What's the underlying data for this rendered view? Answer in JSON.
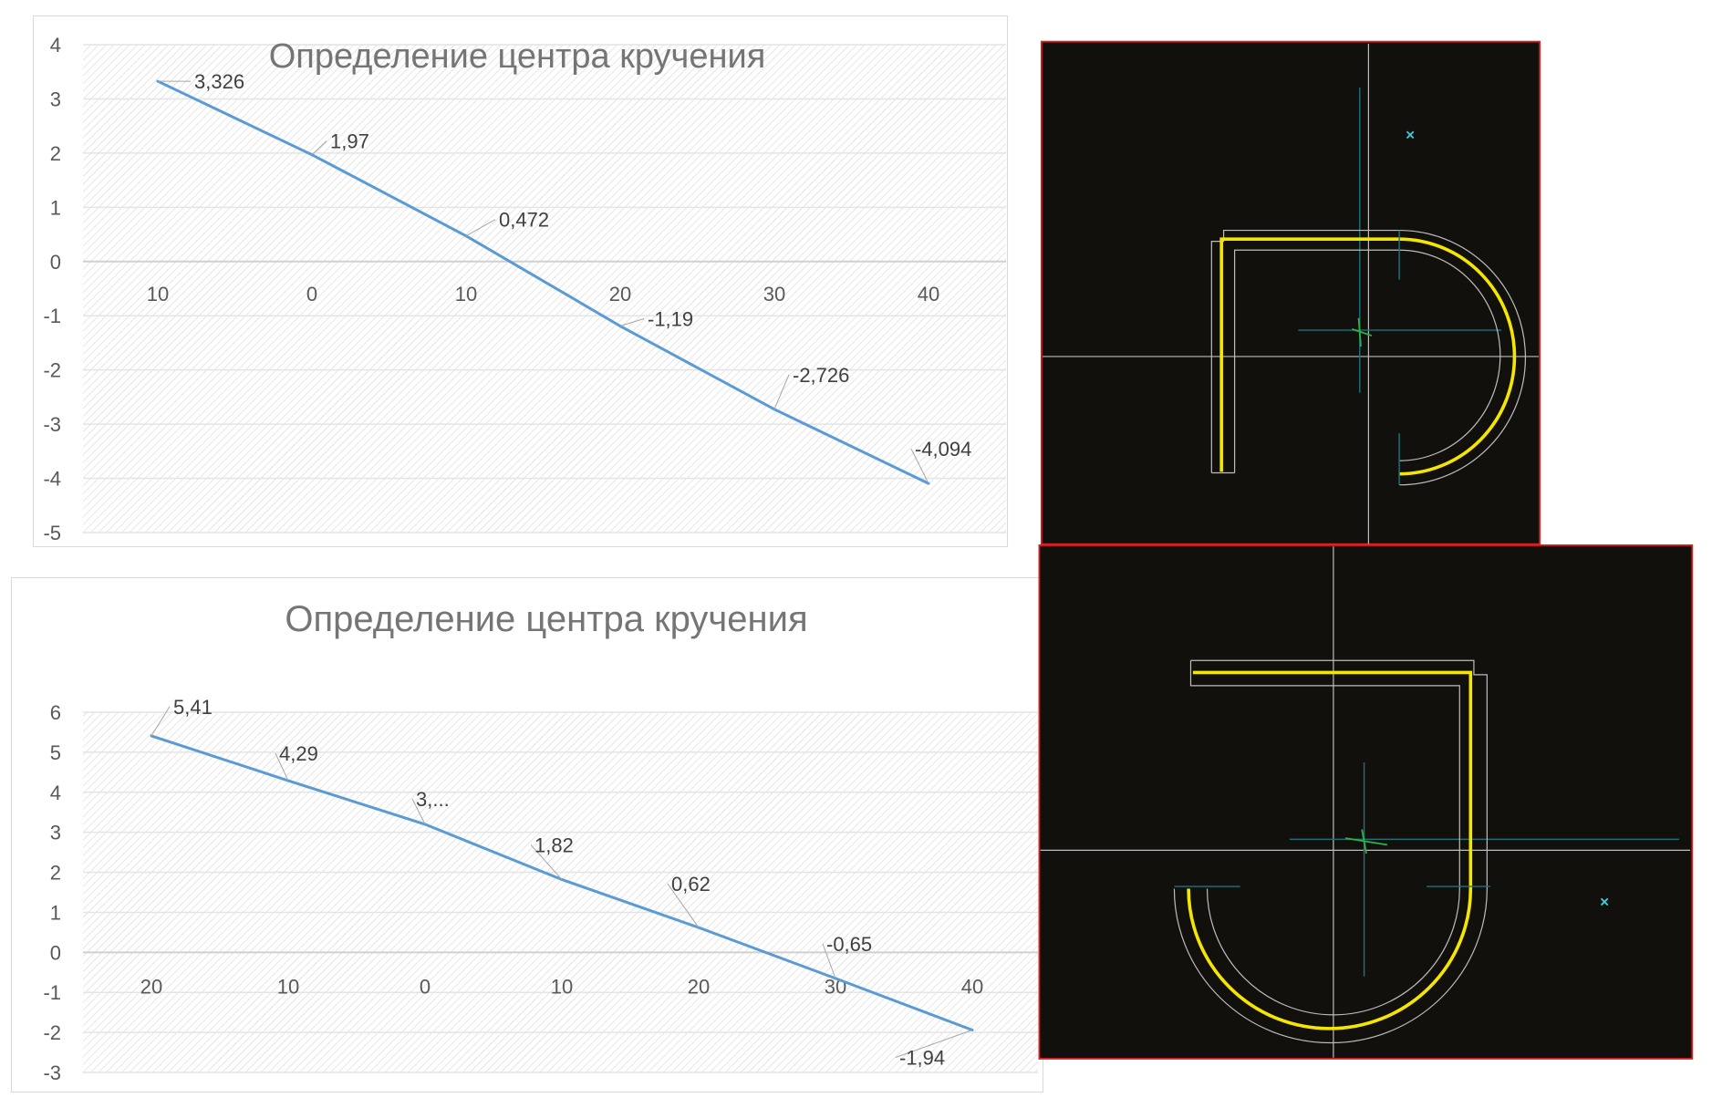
{
  "chart_data": [
    {
      "type": "line",
      "title": "Определение центра кручения",
      "xlabel": "",
      "ylabel": "",
      "categories": [
        "10",
        "0",
        "10",
        "20",
        "30",
        "40"
      ],
      "values": [
        3.326,
        1.97,
        0.472,
        -1.19,
        -2.726,
        -4.094
      ],
      "data_labels": [
        "3,326",
        "1,97",
        "0,472",
        "-1,19",
        "-2,726",
        "-4,094"
      ],
      "yticks": [
        "4",
        "3",
        "2",
        "1",
        "0",
        "-1",
        "-2",
        "-3",
        "-4",
        "-5"
      ],
      "ylim": [
        -5,
        4
      ],
      "grid": true,
      "line_color": "#5b9bd5"
    },
    {
      "type": "line",
      "title": "Определение центра кручения",
      "xlabel": "",
      "ylabel": "",
      "categories": [
        "20",
        "10",
        "0",
        "10",
        "20",
        "30",
        "40"
      ],
      "values": [
        5.41,
        4.29,
        3.2,
        1.82,
        0.62,
        -0.65,
        -1.94
      ],
      "data_labels": [
        "5,41",
        "4,29",
        "3,...",
        "1,82",
        "0,62",
        "-0,65",
        "-1,94"
      ],
      "yticks": [
        "6",
        "5",
        "4",
        "3",
        "2",
        "1",
        "0",
        "-1",
        "-2",
        "-3"
      ],
      "ylim": [
        -3,
        6
      ],
      "grid": true,
      "line_color": "#5b9bd5"
    }
  ],
  "cad_colors": {
    "background": "#12100c",
    "border": "#e02020",
    "profile": "#f5e600",
    "outline": "#bdbdbd",
    "axis": "#1f6f78",
    "marker": "#3fd0e0"
  }
}
